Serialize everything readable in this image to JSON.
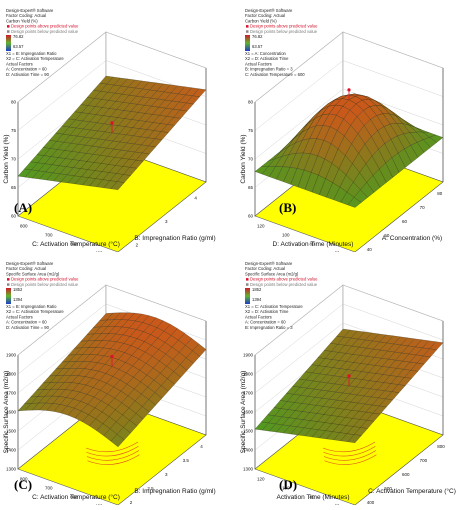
{
  "colors": {
    "surface_low": "#4f9a1f",
    "surface_high": "#c9591a",
    "floor": "#ffff00",
    "point_red": "#e0102a",
    "frame": "#9a9a9a"
  },
  "chart_data": [
    {
      "type": "surface3d",
      "panel_label": "(A)",
      "info_lines": [
        "Design-Expert® Software",
        "Factor Coding: Actual",
        "Carbon Yield (%)",
        "Design points above predicted value",
        "Design points below predicted value",
        "76.82",
        "63.57",
        "X1 = B: Impregnation Ratio",
        "X2 = C: Activation Temperature",
        "Actual Factors",
        "A: Concentration = 60",
        "D: Activation Time = 90"
      ],
      "zlabel": "Carbon Yield (%)",
      "xlabel": "C: Activation Temperature (°C)",
      "ylabel": "B: Impregnation Ratio (g/ml)",
      "z_ticks": [
        "60",
        "65",
        "70",
        "75",
        "80"
      ],
      "x_ticks": [
        "800",
        "700",
        "600",
        "400"
      ],
      "y_ticks": [
        "2",
        "3",
        "4"
      ],
      "surface": {
        "z_range": [
          63.57,
          76.82
        ],
        "shape": "rising"
      }
    },
    {
      "type": "surface3d",
      "panel_label": "(B)",
      "info_lines": [
        "Design-Expert® Software",
        "Factor Coding: Actual",
        "Carbon Yield (%)",
        "Design points above predicted value",
        "Design points below predicted value",
        "76.82",
        "63.57",
        "X1 = A: Concentration",
        "X2 = D: Activation Time",
        "Actual Factors",
        "B: Impregnation Ratio = 3",
        "C: Activation Temperature = 600"
      ],
      "zlabel": "Carbon Yield (%)",
      "xlabel": "D: Activation Time (Minutes)",
      "ylabel": "A: Concentration (%)",
      "z_ticks": [
        "60",
        "65",
        "70",
        "75",
        "80"
      ],
      "x_ticks": [
        "120",
        "100",
        "80",
        "60"
      ],
      "y_ticks": [
        "40",
        "50",
        "60",
        "70",
        "80"
      ],
      "surface": {
        "z_range": [
          63.57,
          76.82
        ],
        "shape": "dome"
      }
    },
    {
      "type": "surface3d",
      "panel_label": "(C)",
      "info_lines": [
        "Design-Expert® Software",
        "Factor Coding: Actual",
        "Specific Surface Area (m2/g)",
        "Design points above predicted value",
        "Design points below predicted value",
        "1852",
        "1394",
        "X1 = B: Impregnation Ratio",
        "X2 = C: Activation Temperature",
        "Actual Factors",
        "A: Concentration = 60",
        "D: Activation Time = 90"
      ],
      "zlabel": "Specific Surface Area (m2/g)",
      "xlabel": "C: Activation Temperature (°C)",
      "ylabel": "B: Impregnation Ratio (g/ml)",
      "z_ticks": [
        "1300",
        "1400",
        "1500",
        "1600",
        "1700",
        "1800",
        "1900"
      ],
      "x_ticks": [
        "800",
        "700",
        "600",
        "400"
      ],
      "y_ticks": [
        "2",
        "2.5",
        "3",
        "3.5",
        "4"
      ],
      "surface": {
        "z_range": [
          1394,
          1852
        ],
        "shape": "falling"
      }
    },
    {
      "type": "surface3d",
      "panel_label": "(D)",
      "info_lines": [
        "Design-Expert® Software",
        "Factor Coding: Actual",
        "Specific Surface Area (m2/g)",
        "Design points above predicted value",
        "Design points below predicted value",
        "1852",
        "1394",
        "X1 = C: Activation Temperature",
        "X2 = D: Activation Time",
        "Actual Factors",
        "A: Concentration = 60",
        "B: Impregnation Ratio = 3"
      ],
      "zlabel": "Specific Surface Area (m2/g)",
      "xlabel": "Activation Time (Minutes)",
      "ylabel": "C: Activation Temperature (°C)",
      "z_ticks": [
        "1300",
        "1400",
        "1500",
        "1600",
        "1700",
        "1800",
        "1900"
      ],
      "x_ticks": [
        "120",
        "100",
        "80",
        "60"
      ],
      "y_ticks": [
        "400",
        "500",
        "600",
        "700",
        "800"
      ],
      "surface": {
        "z_range": [
          1394,
          1852
        ],
        "shape": "rising"
      }
    }
  ]
}
